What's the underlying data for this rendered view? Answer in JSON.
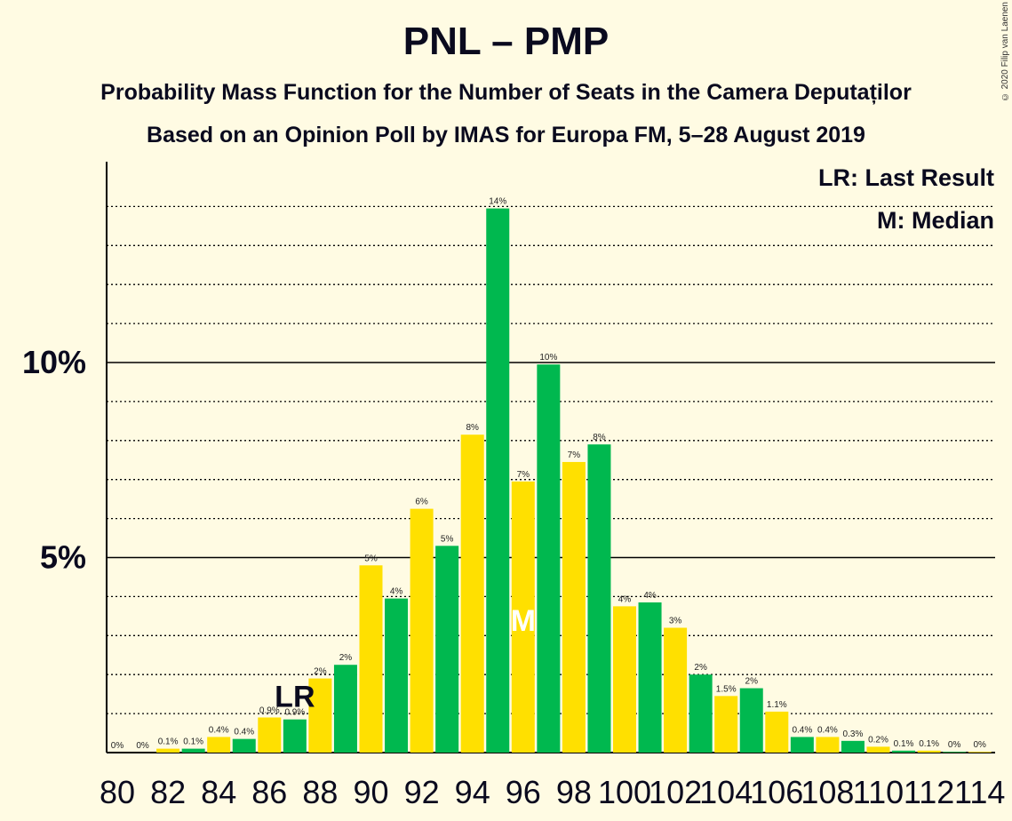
{
  "header": {
    "title": "PNL – PMP",
    "subtitle": "Probability Mass Function for the Number of Seats in the Camera Deputaților",
    "subtitle2": "Based on an Opinion Poll by IMAS for Europa FM, 5–28 August 2019",
    "credit": "© 2020 Filip van Laenen"
  },
  "legend": {
    "lr": "LR: Last Result",
    "median": "M: Median"
  },
  "markers": {
    "lr_label": "LR",
    "lr_seat": 87,
    "median_label": "M",
    "median_seat": 96
  },
  "colors": {
    "green": "#00b84f",
    "yellow": "#ffe000",
    "background": "#fffbe3",
    "text": "#0a0a1e"
  },
  "chart_data": {
    "type": "bar",
    "x": [
      80,
      81,
      82,
      83,
      84,
      85,
      86,
      87,
      88,
      89,
      90,
      91,
      92,
      93,
      94,
      95,
      96,
      97,
      98,
      99,
      100,
      101,
      102,
      103,
      104,
      105,
      106,
      107,
      108,
      109,
      110,
      111,
      112,
      113,
      114
    ],
    "values": [
      0,
      0,
      0.1,
      0.1,
      0.4,
      0.35,
      0.9,
      0.85,
      1.9,
      2.25,
      4.8,
      3.95,
      6.25,
      5.3,
      8.15,
      13.95,
      6.95,
      9.95,
      7.45,
      7.9,
      3.75,
      3.85,
      3.2,
      2.0,
      1.45,
      1.65,
      1.05,
      0.4,
      0.4,
      0.3,
      0.15,
      0.05,
      0.05,
      0.02,
      0.02
    ],
    "labels": [
      "0%",
      "0%",
      "0.1%",
      "0.1%",
      "0.4%",
      "0.4%",
      "0.9%",
      "0.9%",
      "2%",
      "2%",
      "5%",
      "4%",
      "6%",
      "5%",
      "8%",
      "14%",
      "7%",
      "10%",
      "7%",
      "8%",
      "4%",
      "4%",
      "3%",
      "2%",
      "1.5%",
      "2%",
      "1.1%",
      "0.4%",
      "0.4%",
      "0.3%",
      "0.2%",
      "0.1%",
      "0.1%",
      "0%",
      "0%"
    ],
    "x_tick_labels": [
      "80",
      "82",
      "84",
      "86",
      "88",
      "90",
      "92",
      "94",
      "96",
      "98",
      "100",
      "102",
      "104",
      "106",
      "108",
      "110",
      "112",
      "114"
    ],
    "y_tick_labels": [
      "5%",
      "10%"
    ],
    "y_ticks": [
      5,
      10
    ],
    "ylim": [
      0,
      15.2
    ],
    "grid": true
  }
}
